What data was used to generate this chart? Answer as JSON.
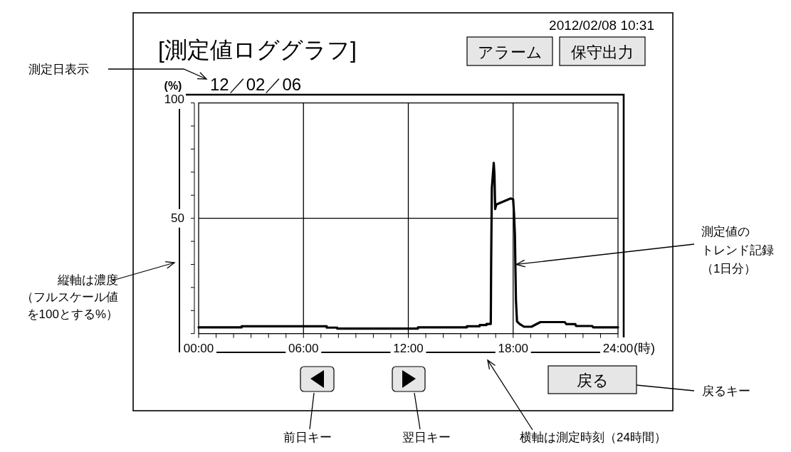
{
  "chart_data": {
    "type": "line",
    "title": "[測定値ロググラフ]",
    "xlabel": "(時)",
    "ylabel": "(%)",
    "x": [
      0,
      2.46,
      2.46,
      7.33,
      7.33,
      7.93,
      7.93,
      12.55,
      12.55,
      15.35,
      15.35,
      16.08,
      16.08,
      16.47,
      16.47,
      16.72,
      16.74,
      16.78,
      16.84,
      16.89,
      16.93,
      16.97,
      17.04,
      17.86,
      18.0,
      18.05,
      18.1,
      18.16,
      18.22,
      18.37,
      18.62,
      19.05,
      19.3,
      19.56,
      20.95,
      21.05,
      21.56,
      21.6,
      22.53,
      22.58,
      24
    ],
    "series": [
      {
        "color": "#000000",
        "values": [
          2.7,
          2.7,
          3.2,
          3.2,
          2.6,
          2.6,
          2.2,
          2.2,
          2.7,
          2.7,
          3.2,
          3.2,
          3.7,
          3.7,
          4.2,
          4.2,
          30,
          63,
          69,
          74,
          69,
          54,
          56,
          58.6,
          58.2,
          52,
          43,
          14.5,
          5.3,
          4.2,
          3.0,
          3.0,
          4.0,
          5.0,
          5.0,
          4.1,
          4.1,
          3.3,
          3.3,
          2.7,
          2.7
        ]
      }
    ],
    "xlim": [
      0,
      24
    ],
    "ylim": [
      0,
      100
    ],
    "xticks": [
      {
        "value": 0,
        "label": "00:00"
      },
      {
        "value": 1,
        "label": null
      },
      {
        "value": 2,
        "label": null
      },
      {
        "value": 3,
        "label": null
      },
      {
        "value": 4,
        "label": null
      },
      {
        "value": 5,
        "label": null
      },
      {
        "value": 6,
        "label": "06:00"
      },
      {
        "value": 7,
        "label": null
      },
      {
        "value": 8,
        "label": null
      },
      {
        "value": 9,
        "label": null
      },
      {
        "value": 10,
        "label": null
      },
      {
        "value": 11,
        "label": null
      },
      {
        "value": 12,
        "label": "12:00"
      },
      {
        "value": 13,
        "label": null
      },
      {
        "value": 14,
        "label": null
      },
      {
        "value": 15,
        "label": null
      },
      {
        "value": 16,
        "label": null
      },
      {
        "value": 17,
        "label": null
      },
      {
        "value": 18,
        "label": "18:00"
      },
      {
        "value": 19,
        "label": null
      },
      {
        "value": 20,
        "label": null
      },
      {
        "value": 21,
        "label": null
      },
      {
        "value": 22,
        "label": null
      },
      {
        "value": 23,
        "label": null
      },
      {
        "value": 24,
        "label": "24:00"
      }
    ],
    "yticks": [
      {
        "value": 0,
        "label": null
      },
      {
        "value": 10,
        "label": null
      },
      {
        "value": 20,
        "label": null
      },
      {
        "value": 30,
        "label": null
      },
      {
        "value": 40,
        "label": null
      },
      50,
      {
        "value": 60,
        "label": null
      },
      {
        "value": 70,
        "label": null
      },
      {
        "value": 80,
        "label": null
      },
      {
        "value": 90,
        "label": null
      },
      100
    ],
    "grid": true,
    "line_style": "solid",
    "annotations": [
      "2012/02/08 10:31",
      "アラーム",
      "保守出力",
      "12／02／06",
      "測定日表示",
      "縦軸は濃度",
      "（フルスケール値",
      "を100とする%）",
      "測定値の",
      {
        "text": "トレンド記録",
        "x": 18.1,
        "y": 30
      },
      "（1日分）",
      "戻る",
      "戻るキー",
      "前日キー",
      "翌日キー",
      "横軸は測定時刻（24時間）"
    ]
  }
}
